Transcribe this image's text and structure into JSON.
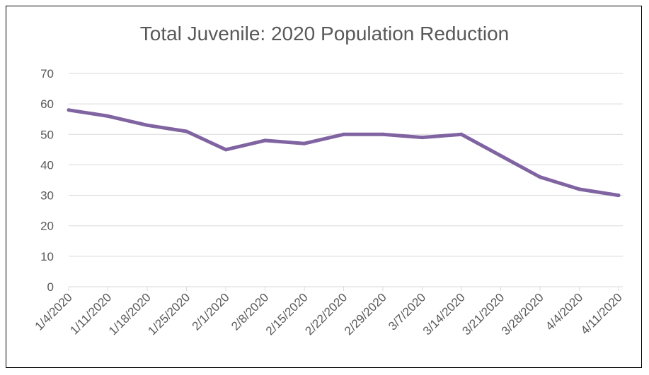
{
  "chart_data": {
    "type": "line",
    "title": "Total Juvenile: 2020 Population Reduction",
    "xlabel": "",
    "ylabel": "",
    "categories": [
      "1/4/2020",
      "1/11/2020",
      "1/18/2020",
      "1/25/2020",
      "2/1/2020",
      "2/8/2020",
      "2/15/2020",
      "2/22/2020",
      "2/29/2020",
      "3/7/2020",
      "3/14/2020",
      "3/21/2020",
      "3/28/2020",
      "4/4/2020",
      "4/11/2020"
    ],
    "series": [
      {
        "values": [
          58,
          56,
          53,
          51,
          45,
          48,
          47,
          50,
          50,
          49,
          50,
          43,
          36,
          32,
          30
        ],
        "color": "#8064A2"
      }
    ],
    "ylim": [
      0,
      70
    ],
    "yticks": [
      0,
      10,
      20,
      30,
      40,
      50,
      60,
      70
    ],
    "grid": true,
    "legend": "none"
  }
}
